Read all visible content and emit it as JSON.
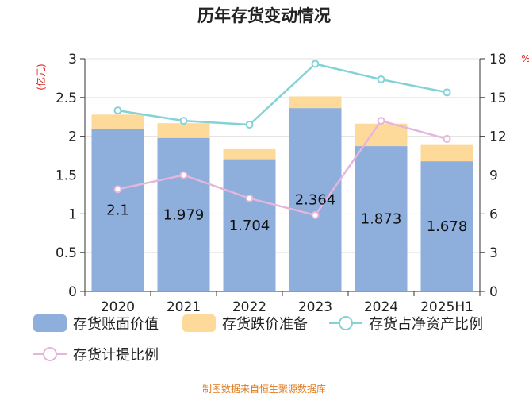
{
  "colors": {
    "book_value": "#8eaedb",
    "impairment_reserve": "#fdd99a",
    "ratio_to_net_assets": "#83d2d6",
    "provision_ratio": "#e6b5dc",
    "grid": "#e0e0e0",
    "axis": "#333333",
    "unit": "#e0201b",
    "source": "#e07a1b"
  },
  "chart_data": {
    "type": "bar",
    "title": "历年存货变动情况",
    "categories": [
      "2020",
      "2021",
      "2022",
      "2023",
      "2024",
      "2025H1"
    ],
    "left_axis": {
      "unit": "(亿元)",
      "ylim": [
        0,
        3
      ],
      "ticks": [
        "0",
        "0.5",
        "1",
        "1.5",
        "2",
        "2.5",
        "3"
      ]
    },
    "right_axis": {
      "unit": "%",
      "ylim": [
        0,
        18
      ],
      "ticks": [
        "0",
        "3",
        "6",
        "9",
        "12",
        "15",
        "18"
      ]
    },
    "series": [
      {
        "name": "存货账面价值",
        "kind": "bar",
        "stack": "inventory",
        "axis": "left",
        "values": [
          2.1,
          1.979,
          1.704,
          2.364,
          1.873,
          1.678
        ],
        "labels": [
          "2.1",
          "1.979",
          "1.704",
          "2.364",
          "1.873",
          "1.678"
        ]
      },
      {
        "name": "存货跌价准备",
        "kind": "bar",
        "stack": "inventory",
        "axis": "left",
        "values": [
          0.18,
          0.19,
          0.13,
          0.15,
          0.29,
          0.22
        ]
      },
      {
        "name": "存货占净资产比例",
        "kind": "line",
        "axis": "right",
        "values": [
          14.0,
          13.2,
          12.9,
          17.6,
          16.4,
          15.4
        ]
      },
      {
        "name": "存货计提比例",
        "kind": "line",
        "axis": "right",
        "values": [
          7.9,
          9.0,
          7.2,
          5.9,
          13.2,
          11.8
        ]
      }
    ],
    "source": "制图数据来自恒生聚源数据库"
  }
}
